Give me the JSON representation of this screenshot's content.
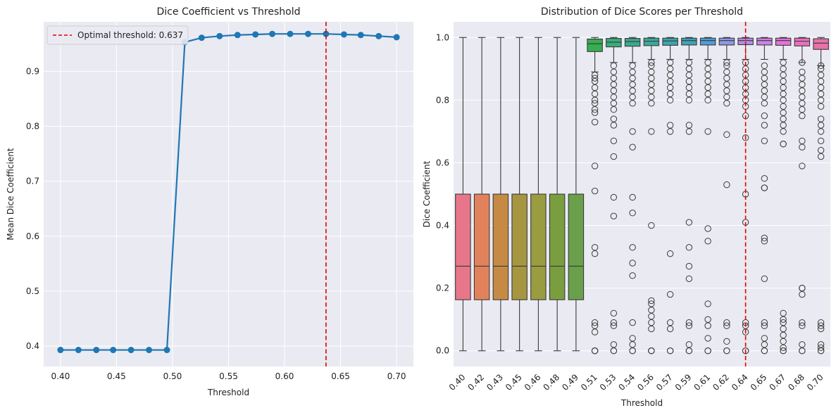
{
  "chart_data": [
    {
      "type": "line",
      "title": "Dice Coefficient vs Threshold",
      "xlabel": "Threshold",
      "ylabel": "Mean Dice Coefficient",
      "xlim": [
        0.385,
        0.715
      ],
      "ylim": [
        0.363,
        0.99
      ],
      "xticks": [
        0.4,
        0.45,
        0.5,
        0.55,
        0.6,
        0.65,
        0.7
      ],
      "xtick_labels": [
        "0.40",
        "0.45",
        "0.50",
        "0.55",
        "0.60",
        "0.65",
        "0.70"
      ],
      "yticks": [
        0.4,
        0.5,
        0.6,
        0.7,
        0.8,
        0.9
      ],
      "ytick_labels": [
        "0.4",
        "0.5",
        "0.6",
        "0.7",
        "0.8",
        "0.9"
      ],
      "grid": true,
      "line_color": "#1f77b4",
      "series": [
        {
          "x": [
            0.4,
            0.416,
            0.432,
            0.447,
            0.463,
            0.479,
            0.495,
            0.511,
            0.526,
            0.542,
            0.558,
            0.574,
            0.589,
            0.605,
            0.621,
            0.637,
            0.653,
            0.668,
            0.684,
            0.7
          ],
          "y": [
            0.393,
            0.393,
            0.393,
            0.393,
            0.393,
            0.393,
            0.393,
            0.953,
            0.961,
            0.964,
            0.966,
            0.967,
            0.968,
            0.968,
            0.968,
            0.968,
            0.967,
            0.966,
            0.964,
            0.962
          ]
        }
      ],
      "vline": {
        "x": 0.637,
        "color": "#e00000",
        "label": "Optimal threshold: 0.637"
      },
      "legend_position": "top-left"
    },
    {
      "type": "box",
      "title": "Distribution of Dice Scores per Threshold",
      "xlabel": "Threshold",
      "ylabel": "Dice Coefficient",
      "ylim": [
        -0.05,
        1.05
      ],
      "yticks": [
        0.0,
        0.2,
        0.4,
        0.6,
        0.8,
        1.0
      ],
      "ytick_labels": [
        "0.0",
        "0.2",
        "0.4",
        "0.6",
        "0.8",
        "1.0"
      ],
      "grid": true,
      "categories": [
        "0.40",
        "0.42",
        "0.43",
        "0.45",
        "0.46",
        "0.48",
        "0.49",
        "0.51",
        "0.53",
        "0.54",
        "0.56",
        "0.57",
        "0.59",
        "0.61",
        "0.62",
        "0.64",
        "0.65",
        "0.67",
        "0.68",
        "0.70"
      ],
      "colors": [
        "#e8768a",
        "#e2825d",
        "#c58b45",
        "#a69641",
        "#9a9c40",
        "#7a9e3f",
        "#6a9f4c",
        "#36ad51",
        "#38ad7d",
        "#3aaa8f",
        "#3ba89c",
        "#3ca6a8",
        "#3fa2b8",
        "#519ed6",
        "#8d98e6",
        "#b18ce8",
        "#cc83e6",
        "#e073d8",
        "#ea6fbf",
        "#e772a8"
      ],
      "boxes": [
        {
          "whisker_low": 0.0,
          "q1": 0.163,
          "median": 0.27,
          "q3": 0.5,
          "whisker_high": 1.0,
          "outliers": []
        },
        {
          "whisker_low": 0.0,
          "q1": 0.163,
          "median": 0.27,
          "q3": 0.5,
          "whisker_high": 1.0,
          "outliers": []
        },
        {
          "whisker_low": 0.0,
          "q1": 0.163,
          "median": 0.27,
          "q3": 0.5,
          "whisker_high": 1.0,
          "outliers": []
        },
        {
          "whisker_low": 0.0,
          "q1": 0.163,
          "median": 0.27,
          "q3": 0.5,
          "whisker_high": 1.0,
          "outliers": []
        },
        {
          "whisker_low": 0.0,
          "q1": 0.163,
          "median": 0.27,
          "q3": 0.5,
          "whisker_high": 1.0,
          "outliers": []
        },
        {
          "whisker_low": 0.0,
          "q1": 0.163,
          "median": 0.27,
          "q3": 0.5,
          "whisker_high": 1.0,
          "outliers": []
        },
        {
          "whisker_low": 0.0,
          "q1": 0.163,
          "median": 0.27,
          "q3": 0.5,
          "whisker_high": 1.0,
          "outliers": []
        },
        {
          "whisker_low": 0.89,
          "q1": 0.955,
          "median": 0.98,
          "q3": 0.995,
          "whisker_high": 1.0,
          "outliers": [
            0.0,
            0.0,
            0.0,
            0.06,
            0.08,
            0.09,
            0.31,
            0.33,
            0.51,
            0.59,
            0.73,
            0.76,
            0.77,
            0.79,
            0.8,
            0.82,
            0.84,
            0.86,
            0.87,
            0.88
          ]
        },
        {
          "whisker_low": 0.92,
          "q1": 0.97,
          "median": 0.985,
          "q3": 0.997,
          "whisker_high": 1.0,
          "outliers": [
            0.0,
            0.0,
            0.02,
            0.08,
            0.09,
            0.12,
            0.43,
            0.49,
            0.62,
            0.67,
            0.72,
            0.74,
            0.77,
            0.79,
            0.81,
            0.83,
            0.85,
            0.87,
            0.89,
            0.91
          ]
        },
        {
          "whisker_low": 0.92,
          "q1": 0.972,
          "median": 0.987,
          "q3": 0.997,
          "whisker_high": 1.0,
          "outliers": [
            0.0,
            0.0,
            0.02,
            0.04,
            0.09,
            0.24,
            0.28,
            0.33,
            0.44,
            0.49,
            0.65,
            0.7,
            0.79,
            0.81,
            0.83,
            0.85,
            0.87,
            0.89,
            0.91
          ]
        },
        {
          "whisker_low": 0.93,
          "q1": 0.974,
          "median": 0.988,
          "q3": 0.998,
          "whisker_high": 1.0,
          "outliers": [
            0.0,
            0.0,
            0.0,
            0.07,
            0.09,
            0.11,
            0.13,
            0.15,
            0.16,
            0.4,
            0.7,
            0.79,
            0.81,
            0.83,
            0.85,
            0.87,
            0.89,
            0.91,
            0.92
          ]
        },
        {
          "whisker_low": 0.93,
          "q1": 0.975,
          "median": 0.989,
          "q3": 0.998,
          "whisker_high": 1.0,
          "outliers": [
            0.0,
            0.0,
            0.07,
            0.09,
            0.18,
            0.31,
            0.7,
            0.72,
            0.8,
            0.82,
            0.84,
            0.86,
            0.88,
            0.9,
            0.92
          ]
        },
        {
          "whisker_low": 0.93,
          "q1": 0.976,
          "median": 0.99,
          "q3": 0.998,
          "whisker_high": 1.0,
          "outliers": [
            0.0,
            0.0,
            0.02,
            0.08,
            0.09,
            0.23,
            0.27,
            0.33,
            0.41,
            0.7,
            0.72,
            0.8,
            0.82,
            0.84,
            0.86,
            0.88,
            0.9,
            0.92
          ]
        },
        {
          "whisker_low": 0.93,
          "q1": 0.976,
          "median": 0.99,
          "q3": 0.998,
          "whisker_high": 1.0,
          "outliers": [
            0.0,
            0.0,
            0.04,
            0.08,
            0.1,
            0.15,
            0.35,
            0.39,
            0.7,
            0.8,
            0.82,
            0.84,
            0.86,
            0.88,
            0.9,
            0.92
          ]
        },
        {
          "whisker_low": 0.93,
          "q1": 0.976,
          "median": 0.99,
          "q3": 0.998,
          "whisker_high": 1.0,
          "outliers": [
            0.0,
            0.0,
            0.03,
            0.08,
            0.09,
            0.53,
            0.69,
            0.79,
            0.81,
            0.83,
            0.85,
            0.87,
            0.89,
            0.91,
            0.92
          ]
        },
        {
          "whisker_low": 0.93,
          "q1": 0.977,
          "median": 0.99,
          "q3": 0.998,
          "whisker_high": 1.0,
          "outliers": [
            0.0,
            0.0,
            0.06,
            0.08,
            0.09,
            0.41,
            0.5,
            0.68,
            0.75,
            0.78,
            0.8,
            0.82,
            0.84,
            0.86,
            0.88,
            0.9,
            0.92
          ]
        },
        {
          "whisker_low": 0.93,
          "q1": 0.976,
          "median": 0.99,
          "q3": 0.998,
          "whisker_high": 1.0,
          "outliers": [
            0.0,
            0.0,
            0.02,
            0.04,
            0.08,
            0.09,
            0.23,
            0.35,
            0.36,
            0.52,
            0.52,
            0.55,
            0.67,
            0.72,
            0.75,
            0.79,
            0.81,
            0.83,
            0.85,
            0.87,
            0.89,
            0.91
          ]
        },
        {
          "whisker_low": 0.93,
          "q1": 0.975,
          "median": 0.99,
          "q3": 0.998,
          "whisker_high": 1.0,
          "outliers": [
            0.0,
            0.0,
            0.01,
            0.03,
            0.05,
            0.07,
            0.09,
            0.1,
            0.12,
            0.66,
            0.66,
            0.7,
            0.72,
            0.74,
            0.76,
            0.78,
            0.8,
            0.82,
            0.84,
            0.86,
            0.88,
            0.9,
            0.92
          ]
        },
        {
          "whisker_low": 0.92,
          "q1": 0.973,
          "median": 0.988,
          "q3": 0.998,
          "whisker_high": 1.0,
          "outliers": [
            0.0,
            0.0,
            0.02,
            0.08,
            0.09,
            0.18,
            0.2,
            0.2,
            0.59,
            0.65,
            0.67,
            0.75,
            0.77,
            0.79,
            0.81,
            0.83,
            0.85,
            0.87,
            0.89,
            0.92
          ]
        },
        {
          "whisker_low": 0.91,
          "q1": 0.962,
          "median": 0.982,
          "q3": 0.996,
          "whisker_high": 1.0,
          "outliers": [
            0.0,
            0.0,
            0.01,
            0.02,
            0.07,
            0.08,
            0.09,
            0.62,
            0.64,
            0.67,
            0.7,
            0.72,
            0.74,
            0.78,
            0.8,
            0.82,
            0.84,
            0.86,
            0.88,
            0.9,
            0.91
          ]
        }
      ],
      "vline": {
        "category_index": 15,
        "color": "#e00000"
      }
    }
  ]
}
